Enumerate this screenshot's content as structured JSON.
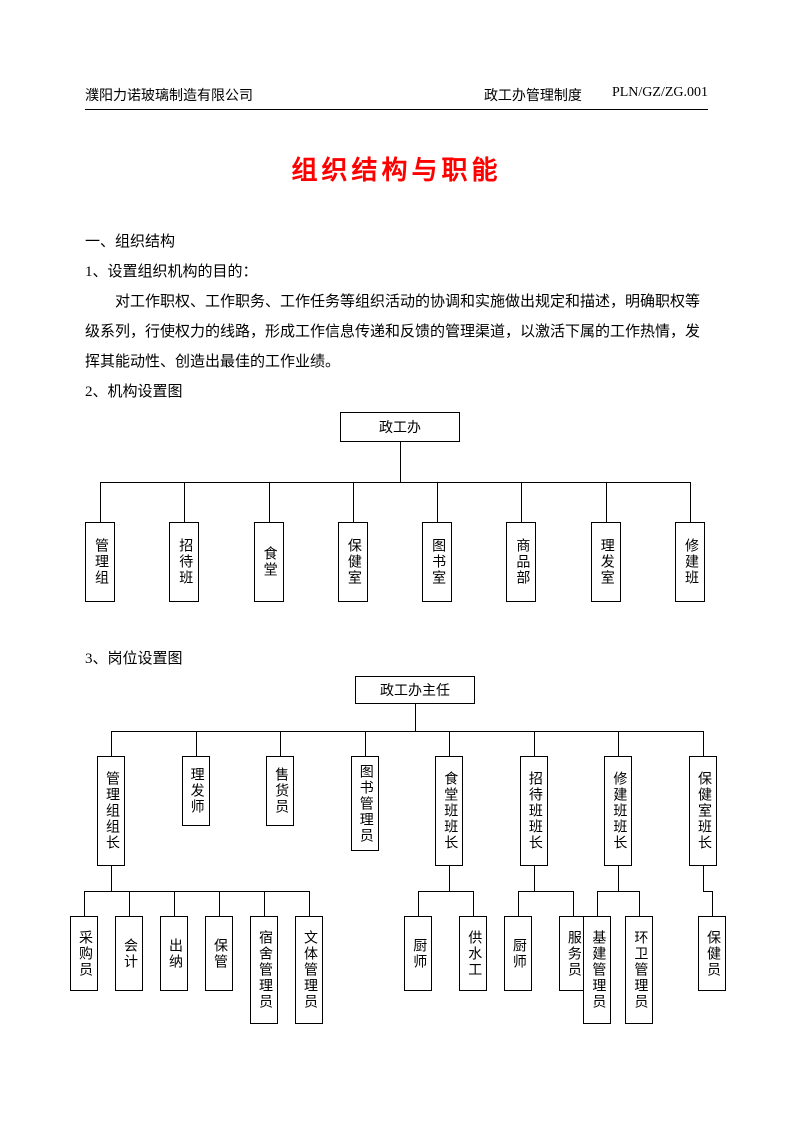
{
  "header": {
    "company": "濮阳力诺玻璃制造有限公司",
    "doc": "政工办管理制度",
    "code": "PLN/GZ/ZG.001"
  },
  "title": "组织结构与职能",
  "sec1_h": "一、组织结构",
  "sec1_1": "1、设置组织机构的目的：",
  "sec1_p": "对工作职权、工作职务、工作任务等组织活动的协调和实施做出规定和描述，明确职权等级系列，行使权力的线路，形成工作信息传递和反馈的管理渠道，以激活下属的工作热情，发挥其能动性、创造出最佳的工作业绩。",
  "sec1_2": "2、机构设置图",
  "sec1_3": "3、岗位设置图",
  "chart1": {
    "root": "政工办",
    "children": [
      "管理组",
      "招待班",
      "食堂",
      "保健室",
      "图书室",
      "商品部",
      "理发室",
      "修建班"
    ]
  },
  "chart2": {
    "root": "政工办主任",
    "mid": [
      "管理组组长",
      "理发师",
      "售货员",
      "图书管理员",
      "食堂班班长",
      "招待班班长",
      "修建班班长",
      "保健室班长"
    ],
    "g0": [
      "采购员",
      "会计",
      "出纳",
      "保管",
      "宿舍管理员",
      "文体管理员"
    ],
    "g4": [
      "厨师",
      "供水工"
    ],
    "g5": [
      "厨师",
      "服务员"
    ],
    "g6": [
      "基建管理员",
      "环卫管理员"
    ],
    "g7": [
      "保健员"
    ]
  },
  "style": {
    "text_color": "#000000",
    "title_color": "#ff0000",
    "border_color": "#000000",
    "bg": "#ffffff",
    "body_fontsize": 15,
    "title_fontsize": 26,
    "box_fontsize": 14
  }
}
